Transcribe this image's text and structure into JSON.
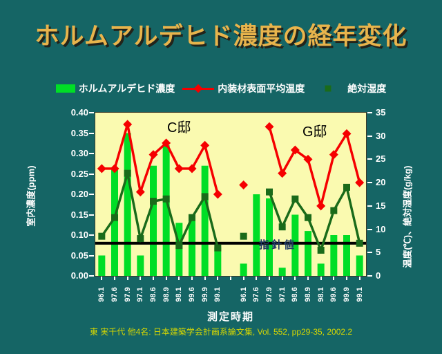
{
  "slide": {
    "title": "ホルムアルデヒド濃度の経年変化",
    "citation": "東 実千代 他4名: 日本建築学会計画系論文集, Vol. 552, pp29-35, 2002.2"
  },
  "legend": {
    "items": [
      {
        "label": "ホルムアルデヒド濃度",
        "marker": "bar-swatch",
        "color": "#00DE26"
      },
      {
        "label": "内装材表面平均温度",
        "marker": "line-diamond",
        "color": "#F50000"
      },
      {
        "label": "絶対湿度",
        "marker": "line-square",
        "color": "#1A6B1A"
      }
    ]
  },
  "chart_data": {
    "type": "bar",
    "subtype": "combo-bar-line-dual-axis",
    "x_labels": [
      "96.1",
      "97.6",
      "97.9",
      "97.1",
      "98.6",
      "98.9",
      "98.1",
      "99.6",
      "99.9",
      "99.1",
      "",
      "96.1",
      "97.6",
      "97.9",
      "97.1",
      "98.6",
      "98.9",
      "98.1",
      "99.6",
      "99.9",
      "99.1"
    ],
    "group_labels": [
      "C邸",
      "G邸"
    ],
    "series": [
      {
        "name": "ホルムアルデヒド濃度",
        "type": "bar",
        "axis": "left",
        "unit": "ppm",
        "color": "#00DE26",
        "values": [
          0.05,
          0.26,
          0.35,
          0.05,
          0.27,
          0.32,
          0.13,
          0.14,
          0.27,
          0.07,
          null,
          0.03,
          0.2,
          0.19,
          0.02,
          0.15,
          0.11,
          0.03,
          0.1,
          0.1,
          0.05
        ]
      },
      {
        "name": "内装材表面平均温度",
        "type": "line",
        "marker": "diamond",
        "axis": "right",
        "unit": "C",
        "color": "#F50000",
        "values": [
          23,
          23,
          32.5,
          18,
          26,
          28.5,
          23,
          23,
          28,
          17.5,
          null,
          19.5,
          null,
          32,
          22,
          27,
          25,
          15,
          26,
          30.5,
          20
        ]
      },
      {
        "name": "絶対湿度",
        "type": "line",
        "marker": "square",
        "axis": "right",
        "unit": "g/kg",
        "color": "#1A6B1A",
        "values": [
          8.5,
          12.5,
          22,
          8,
          16,
          16.5,
          6.5,
          12.5,
          17,
          6,
          null,
          8.5,
          null,
          18,
          10.5,
          16.5,
          12.5,
          5.5,
          14,
          19,
          7
        ]
      }
    ],
    "guideline": {
      "value": 0.08,
      "label": "指針値",
      "color": "#000000",
      "label_color": "#1F3864"
    },
    "xlabel": "測定時期",
    "ylabel_left": "室内濃度(ppm)",
    "ylabel_right": "温度(℃)、絶対湿度(g/kg)",
    "ylim_left": [
      0,
      0.4
    ],
    "ylim_right": [
      0,
      35
    ],
    "left_ticks": [
      "0.40",
      "0.35",
      "0.30",
      "0.25",
      "0.20",
      "0.15",
      "0.10",
      "0.05",
      "0.00"
    ],
    "right_ticks": [
      "35",
      "30",
      "25",
      "20",
      "15",
      "10",
      "5",
      "0"
    ],
    "plot_bg": "#FAFAB0",
    "grid": false,
    "legend_position": "top"
  }
}
